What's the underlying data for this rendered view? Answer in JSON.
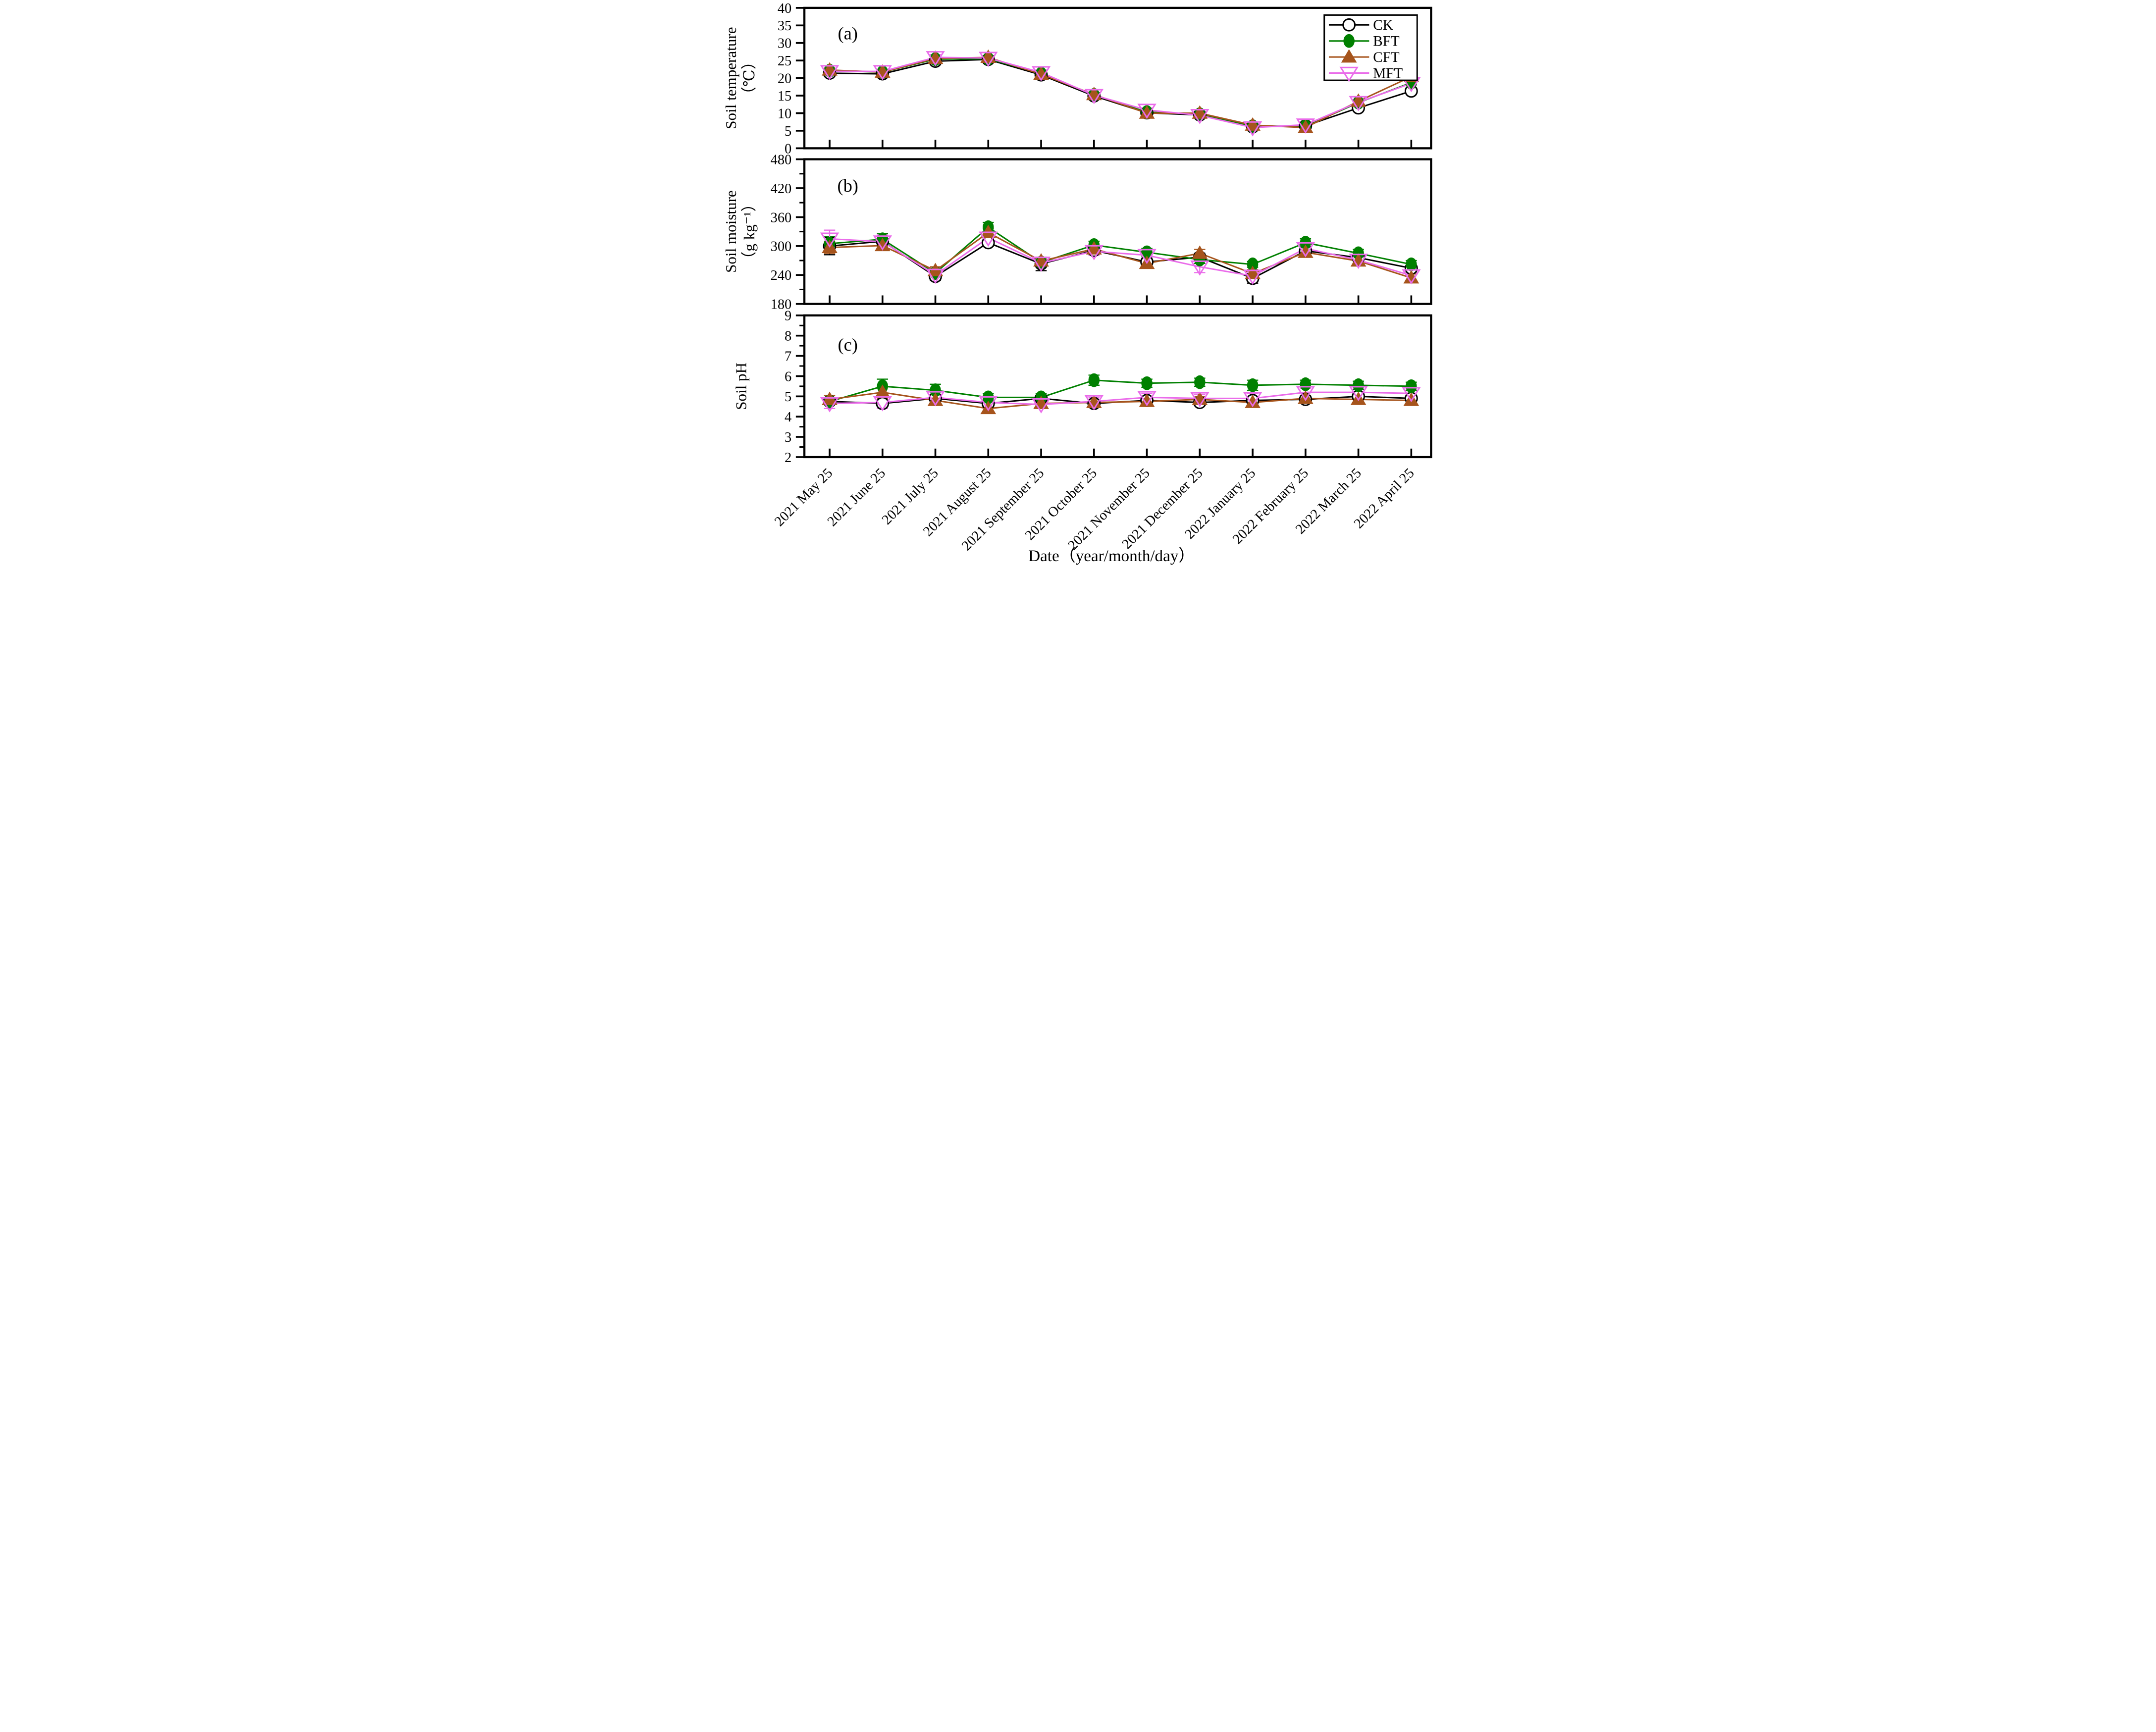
{
  "figure": {
    "x_axis_title": "Date（year/month/day）",
    "categories": [
      "2021 May 25",
      "2021 June 25",
      "2021 July 25",
      "2021 August 25",
      "2021 September 25",
      "2021 October 25",
      "2021 November 25",
      "2021 December 25",
      "2022 January 25",
      "2022 February 25",
      "2022 March 25",
      "2022 April 25"
    ],
    "legend": {
      "position": "top-right-inside-panel-a",
      "items": [
        {
          "label": "CK",
          "color": "#000000",
          "marker": "open-circle"
        },
        {
          "label": "BFT",
          "color": "#008000",
          "marker": "filled-circle"
        },
        {
          "label": "CFT",
          "color": "#A6541C",
          "marker": "filled-triangle-up"
        },
        {
          "label": "MFT",
          "color": "#EA6BEA",
          "marker": "open-triangle-down"
        }
      ]
    }
  },
  "chart_data": [
    {
      "type": "line",
      "panel_label": "(a)",
      "ylabel_lines": [
        "Soil temperature",
        "（℃）"
      ],
      "ylim": [
        0,
        40
      ],
      "ytick_step": 5,
      "yminor_step": 0,
      "grid": false,
      "series": [
        {
          "name": "CK",
          "color": "#000000",
          "marker": "open-circle",
          "values": [
            21.4,
            21.2,
            24.8,
            25.3,
            20.9,
            14.9,
            10.1,
            9.5,
            6.1,
            6.4,
            11.5,
            16.3
          ],
          "errors": [
            0.5,
            0.4,
            0.5,
            0.5,
            0.5,
            0.5,
            0.4,
            0.4,
            0.3,
            0.4,
            0.5,
            0.6
          ]
        },
        {
          "name": "BFT",
          "color": "#008000",
          "marker": "filled-circle",
          "values": [
            22.1,
            21.7,
            25.4,
            25.5,
            21.3,
            15.2,
            10.3,
            9.7,
            6.3,
            6.3,
            13.0,
            18.7
          ],
          "errors": [
            0.5,
            0.4,
            0.5,
            0.5,
            0.5,
            0.4,
            0.4,
            0.4,
            0.3,
            0.4,
            0.5,
            0.5
          ]
        },
        {
          "name": "CFT",
          "color": "#A6541C",
          "marker": "filled-triangle-up",
          "values": [
            22.3,
            21.7,
            25.6,
            25.9,
            21.1,
            15.3,
            10.0,
            10.0,
            6.6,
            5.9,
            13.4,
            20.4
          ],
          "errors": [
            0.6,
            0.5,
            0.6,
            0.5,
            0.5,
            0.5,
            0.4,
            0.5,
            0.4,
            0.4,
            0.5,
            0.6
          ]
        },
        {
          "name": "MFT",
          "color": "#EA6BEA",
          "marker": "open-triangle-down",
          "values": [
            21.9,
            21.9,
            25.9,
            25.7,
            21.6,
            15.1,
            10.9,
            9.4,
            5.9,
            6.7,
            13.1,
            18.5
          ],
          "errors": [
            0.9,
            0.6,
            0.8,
            0.6,
            0.7,
            0.6,
            0.6,
            0.6,
            0.5,
            0.5,
            0.9,
            0.6
          ]
        }
      ]
    },
    {
      "type": "line",
      "panel_label": "(b)",
      "ylabel_lines": [
        "Soil moisture",
        "（g kg⁻¹）"
      ],
      "ylim": [
        180,
        480
      ],
      "ytick_step": 60,
      "yminor_step": 30,
      "grid": false,
      "series": [
        {
          "name": "CK",
          "color": "#000000",
          "marker": "open-circle",
          "values": [
            300,
            310,
            237,
            307,
            263,
            291,
            267,
            277,
            233,
            290,
            276,
            254
          ],
          "errors": [
            18,
            12,
            8,
            8,
            14,
            8,
            8,
            8,
            10,
            8,
            8,
            8
          ]
        },
        {
          "name": "BFT",
          "color": "#008000",
          "marker": "filled-circle",
          "values": [
            305,
            314,
            244,
            339,
            266,
            302,
            287,
            272,
            262,
            307,
            285,
            262
          ],
          "errors": [
            15,
            12,
            10,
            10,
            8,
            8,
            8,
            8,
            6,
            8,
            8,
            8
          ]
        },
        {
          "name": "CFT",
          "color": "#A6541C",
          "marker": "filled-triangle-up",
          "values": [
            297,
            301,
            249,
            328,
            269,
            294,
            264,
            285,
            243,
            287,
            269,
            234
          ],
          "errors": [
            12,
            10,
            8,
            8,
            8,
            8,
            8,
            8,
            8,
            8,
            8,
            8
          ]
        },
        {
          "name": "MFT",
          "color": "#EA6BEA",
          "marker": "open-triangle-down",
          "values": [
            315,
            309,
            240,
            317,
            265,
            289,
            281,
            257,
            238,
            295,
            271,
            239
          ],
          "errors": [
            18,
            14,
            8,
            8,
            8,
            8,
            8,
            12,
            8,
            8,
            8,
            8
          ]
        }
      ]
    },
    {
      "type": "line",
      "panel_label": "(c)",
      "ylabel_lines": [
        "Soil pH"
      ],
      "ylim": [
        2,
        9
      ],
      "ytick_step": 1,
      "yminor_step": 0.5,
      "grid": false,
      "series": [
        {
          "name": "CK",
          "color": "#000000",
          "marker": "open-circle",
          "values": [
            4.75,
            4.65,
            4.9,
            4.65,
            4.9,
            4.65,
            4.8,
            4.7,
            4.8,
            4.85,
            5.0,
            4.9
          ],
          "errors": [
            0.15,
            0.15,
            0.2,
            0.15,
            0.15,
            0.15,
            0.15,
            0.15,
            0.15,
            0.15,
            0.15,
            0.15
          ]
        },
        {
          "name": "BFT",
          "color": "#008000",
          "marker": "filled-circle",
          "values": [
            4.75,
            5.5,
            5.3,
            4.95,
            4.95,
            5.8,
            5.65,
            5.7,
            5.55,
            5.6,
            5.55,
            5.5
          ],
          "errors": [
            0.15,
            0.35,
            0.3,
            0.2,
            0.2,
            0.25,
            0.2,
            0.2,
            0.25,
            0.2,
            0.2,
            0.2
          ]
        },
        {
          "name": "CFT",
          "color": "#A6541C",
          "marker": "filled-triangle-up",
          "values": [
            4.85,
            5.2,
            4.8,
            4.4,
            4.65,
            4.7,
            4.75,
            4.85,
            4.7,
            4.9,
            4.85,
            4.8
          ],
          "errors": [
            0.2,
            0.3,
            0.2,
            0.15,
            0.15,
            0.15,
            0.15,
            0.15,
            0.15,
            0.15,
            0.15,
            0.15
          ]
        },
        {
          "name": "MFT",
          "color": "#EA6BEA",
          "marker": "open-triangle-down",
          "values": [
            4.65,
            4.7,
            4.95,
            4.7,
            4.6,
            4.75,
            4.95,
            4.9,
            4.9,
            5.2,
            5.2,
            5.15
          ],
          "errors": [
            0.25,
            0.3,
            0.35,
            0.2,
            0.2,
            0.2,
            0.2,
            0.2,
            0.25,
            0.2,
            0.2,
            0.2
          ]
        }
      ]
    }
  ]
}
